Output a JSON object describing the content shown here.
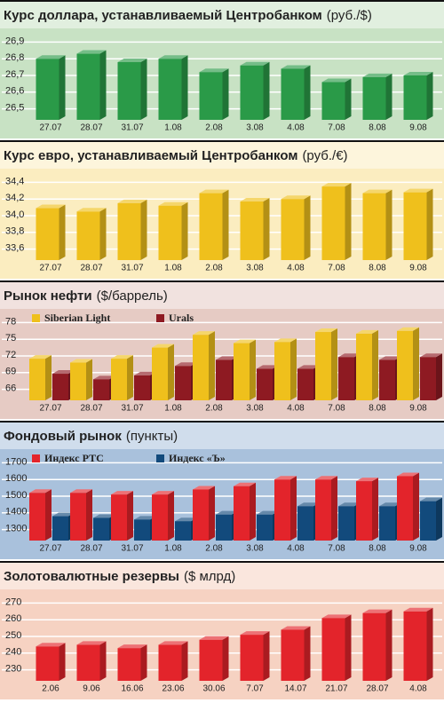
{
  "chart_data": [
    {
      "type": "bar",
      "title": "Курс доллара, устанавливаемый Центробанком",
      "subtitle": "(руб./$)",
      "background": "#c8e2c4",
      "categories": [
        "27.07",
        "28.07",
        "31.07",
        "1.08",
        "2.08",
        "3.08",
        "4.08",
        "7.08",
        "8.08",
        "9.08"
      ],
      "series": [
        {
          "name": null,
          "color": "#2a9a48",
          "values": [
            26.8,
            26.83,
            26.78,
            26.8,
            26.72,
            26.76,
            26.74,
            26.66,
            26.69,
            26.7
          ]
        }
      ],
      "ylim": [
        26.45,
        26.95
      ],
      "yticks": [
        {
          "value": 26.5,
          "label": "26,5"
        },
        {
          "value": 26.6,
          "label": "26,6"
        },
        {
          "value": 26.7,
          "label": "26,7"
        },
        {
          "value": 26.8,
          "label": "26,8"
        },
        {
          "value": 26.9,
          "label": "26,9"
        }
      ],
      "grid": true
    },
    {
      "type": "bar",
      "title": "Курс евро, устанавливаемый Центробанком",
      "subtitle": "(руб./€)",
      "background": "#fbedc0",
      "categories": [
        "27.07",
        "28.07",
        "31.07",
        "1.08",
        "2.08",
        "3.08",
        "4.08",
        "7.08",
        "8.08",
        "9.08"
      ],
      "series": [
        {
          "name": null,
          "color": "#efc01c",
          "values": [
            34.09,
            34.05,
            34.15,
            34.12,
            34.27,
            34.17,
            34.2,
            34.35,
            34.27,
            34.28
          ]
        }
      ],
      "ylim": [
        33.5,
        34.5
      ],
      "yticks": [
        {
          "value": 33.6,
          "label": "33,6"
        },
        {
          "value": 33.8,
          "label": "33,8"
        },
        {
          "value": 34.0,
          "label": "34,0"
        },
        {
          "value": 34.2,
          "label": "34,2"
        },
        {
          "value": 34.4,
          "label": "34,4"
        }
      ],
      "grid": true
    },
    {
      "type": "bar",
      "title": "Рынок нефти",
      "subtitle": "($/баррель)",
      "background": "#e6cbc4",
      "categories": [
        "27.07",
        "28.07",
        "31.07",
        "1.08",
        "2.08",
        "3.08",
        "4.08",
        "7.08",
        "8.08",
        "9.08"
      ],
      "series": [
        {
          "name": "Siberian Light",
          "color": "#efc01c",
          "values": [
            71.5,
            70.8,
            71.5,
            73.5,
            75.8,
            74.3,
            74.5,
            76.3,
            76,
            76.5
          ]
        },
        {
          "name": "Urals",
          "color": "#8e1a22",
          "values": [
            68.8,
            67.8,
            68.5,
            70.2,
            71.3,
            69.7,
            69.7,
            71.8,
            71.3,
            71.8
          ]
        }
      ],
      "ylim": [
        64.5,
        79.5
      ],
      "yticks": [
        66,
        69,
        72,
        75,
        78
      ],
      "grid": true
    },
    {
      "type": "bar",
      "title": "Фондовый рынок",
      "subtitle": "(пункты)",
      "background": "#a9c1dc",
      "categories": [
        "27.07",
        "28.07",
        "31.07",
        "1.08",
        "2.08",
        "3.08",
        "4.08",
        "7.08",
        "8.08",
        "9.08"
      ],
      "series": [
        {
          "name": "Индекс РТС",
          "color": "#e3242b",
          "values": [
            1520,
            1520,
            1510,
            1510,
            1540,
            1560,
            1600,
            1600,
            1590,
            1620
          ]
        },
        {
          "name": "Индекс «Ъ»",
          "color": "#124a7c",
          "values": [
            1380,
            1370,
            1360,
            1350,
            1390,
            1390,
            1440,
            1440,
            1440,
            1470
          ]
        }
      ],
      "ylim": [
        1250,
        1750
      ],
      "yticks": [
        1300,
        1400,
        1500,
        1600,
        1700
      ],
      "grid": true
    },
    {
      "type": "bar",
      "title": "Золотовалютные резервы",
      "subtitle": "($ млрд)",
      "background": "#f6d2c2",
      "categories": [
        "2.06",
        "9.06",
        "16.06",
        "23.06",
        "30.06",
        "7.07",
        "14.07",
        "21.07",
        "28.07",
        "4.08"
      ],
      "series": [
        {
          "name": null,
          "color": "#e3242b",
          "values": [
            244,
            245,
            243,
            245,
            248,
            251,
            254,
            261,
            264,
            265
          ]
        }
      ],
      "ylim": [
        225,
        275
      ],
      "yticks": [
        230,
        240,
        250,
        260,
        270
      ],
      "grid": true
    }
  ]
}
